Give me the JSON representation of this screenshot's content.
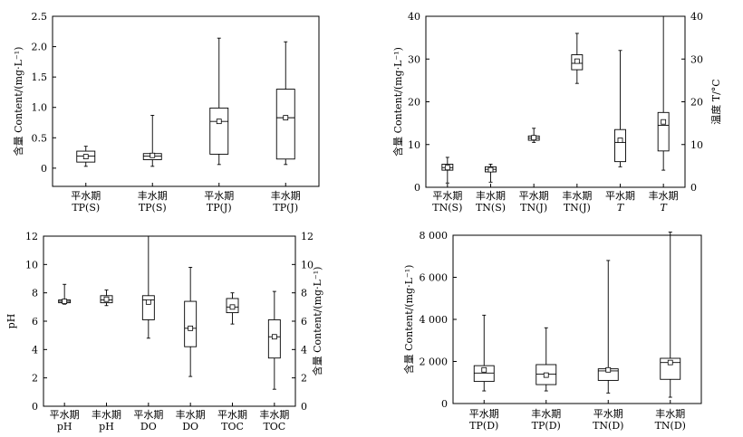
{
  "chart_data": [
    {
      "type": "box",
      "ylabel": "含量 Content/(mg·L⁻¹)",
      "ylim": [
        -0.3,
        2.5
      ],
      "yticks": [
        "0",
        "0.5",
        "1.0",
        "1.5",
        "2.0",
        "2.5"
      ],
      "categories": [
        {
          "top": "平水期",
          "bottom": "TP(S)"
        },
        {
          "top": "丰水期",
          "bottom": "TP(S)"
        },
        {
          "top": "平水期",
          "bottom": "TP(J)"
        },
        {
          "top": "丰水期",
          "bottom": "TP(J)"
        }
      ],
      "boxes": [
        {
          "min": 0.03,
          "q1": 0.1,
          "median": 0.2,
          "q3": 0.28,
          "max": 0.36,
          "mean": 0.19
        },
        {
          "min": 0.03,
          "q1": 0.14,
          "median": 0.2,
          "q3": 0.24,
          "max": 0.87,
          "mean": 0.21
        },
        {
          "min": 0.06,
          "q1": 0.23,
          "median": 0.77,
          "q3": 0.99,
          "max": 2.14,
          "mean": 0.77
        },
        {
          "min": 0.06,
          "q1": 0.15,
          "median": 0.83,
          "q3": 1.3,
          "max": 2.08,
          "mean": 0.83
        }
      ]
    },
    {
      "type": "box",
      "ylabel": "含量 Content/(mg·L⁻¹)",
      "y2label": "温度 T/°C",
      "ylim": [
        0,
        40
      ],
      "yticks": [
        "0",
        "10",
        "20",
        "30",
        "40"
      ],
      "y2ticks": [
        "0",
        "10",
        "20",
        "30",
        "40"
      ],
      "categories": [
        {
          "top": "平水期",
          "bottom": "TN(S)"
        },
        {
          "top": "丰水期",
          "bottom": "TN(S)"
        },
        {
          "top": "平水期",
          "bottom": "TN(J)"
        },
        {
          "top": "丰水期",
          "bottom": "TN(J)"
        },
        {
          "top": "平水期",
          "bottom": "T"
        },
        {
          "top": "丰水期",
          "bottom": "T"
        }
      ],
      "boxes": [
        {
          "min": 1.0,
          "q1": 4.0,
          "median": 4.6,
          "q3": 5.4,
          "max": 7.0,
          "mean": 4.6
        },
        {
          "min": 1.2,
          "q1": 3.6,
          "median": 4.2,
          "q3": 4.8,
          "max": 5.4,
          "mean": 4.1
        },
        {
          "min": 10.5,
          "q1": 11.0,
          "median": 11.5,
          "q3": 12.0,
          "max": 13.8,
          "mean": 11.6
        },
        {
          "min": 24.3,
          "q1": 27.5,
          "median": 29.0,
          "q3": 31.0,
          "max": 36.0,
          "mean": 29.5
        },
        {
          "min": 4.8,
          "q1": 6.0,
          "median": 10.5,
          "q3": 13.5,
          "max": 32.0,
          "mean": 11.0
        },
        {
          "min": 4.0,
          "q1": 8.5,
          "median": 14.5,
          "q3": 17.5,
          "max": 40.0,
          "mean": 15.3
        }
      ]
    },
    {
      "type": "box",
      "ylabel": "pH",
      "y2label": "含量 Content/(mg·L⁻¹)",
      "ylim": [
        0,
        12
      ],
      "yticks": [
        "0",
        "2",
        "4",
        "6",
        "8",
        "10",
        "12"
      ],
      "y2ticks": [
        "0",
        "2",
        "4",
        "6",
        "8",
        "10",
        "12"
      ],
      "categories": [
        {
          "top": "平水期",
          "bottom": "pH"
        },
        {
          "top": "丰水期",
          "bottom": "pH"
        },
        {
          "top": "平水期",
          "bottom": "DO"
        },
        {
          "top": "丰水期",
          "bottom": "DO"
        },
        {
          "top": "平水期",
          "bottom": "TOC"
        },
        {
          "top": "丰水期",
          "bottom": "TOC"
        }
      ],
      "boxes": [
        {
          "min": 7.2,
          "q1": 7.3,
          "median": 7.4,
          "q3": 7.5,
          "max": 8.6,
          "mean": 7.4
        },
        {
          "min": 7.1,
          "q1": 7.3,
          "median": 7.5,
          "q3": 7.8,
          "max": 8.2,
          "mean": 7.55
        },
        {
          "min": 4.8,
          "q1": 6.1,
          "median": 7.5,
          "q3": 7.8,
          "max": 12.0,
          "mean": 7.35
        },
        {
          "min": 2.1,
          "q1": 4.2,
          "median": 5.5,
          "q3": 7.4,
          "max": 9.8,
          "mean": 5.5
        },
        {
          "min": 5.8,
          "q1": 6.6,
          "median": 7.0,
          "q3": 7.6,
          "max": 8.0,
          "mean": 7.0
        },
        {
          "min": 1.2,
          "q1": 3.4,
          "median": 4.9,
          "q3": 6.1,
          "max": 8.1,
          "mean": 4.9
        }
      ]
    },
    {
      "type": "box",
      "ylabel": "含量 Content/(mg·L⁻¹)",
      "ylim": [
        0,
        8000
      ],
      "yticks": [
        "0",
        "2 000",
        "4 000",
        "6 000",
        "8 000"
      ],
      "categories": [
        {
          "top": "平水期",
          "bottom": "TP(D)"
        },
        {
          "top": "丰水期",
          "bottom": "TP(D)"
        },
        {
          "top": "平水期",
          "bottom": "TN(D)"
        },
        {
          "top": "丰水期",
          "bottom": "TN(D)"
        }
      ],
      "boxes": [
        {
          "min": 600,
          "q1": 1050,
          "median": 1450,
          "q3": 1800,
          "max": 4200,
          "mean": 1600
        },
        {
          "min": 600,
          "q1": 900,
          "median": 1400,
          "q3": 1850,
          "max": 3600,
          "mean": 1350
        },
        {
          "min": 500,
          "q1": 1100,
          "median": 1550,
          "q3": 1650,
          "max": 6800,
          "mean": 1600
        },
        {
          "min": 300,
          "q1": 1150,
          "median": 1950,
          "q3": 2150,
          "max": 8150,
          "mean": 1950
        }
      ]
    }
  ]
}
